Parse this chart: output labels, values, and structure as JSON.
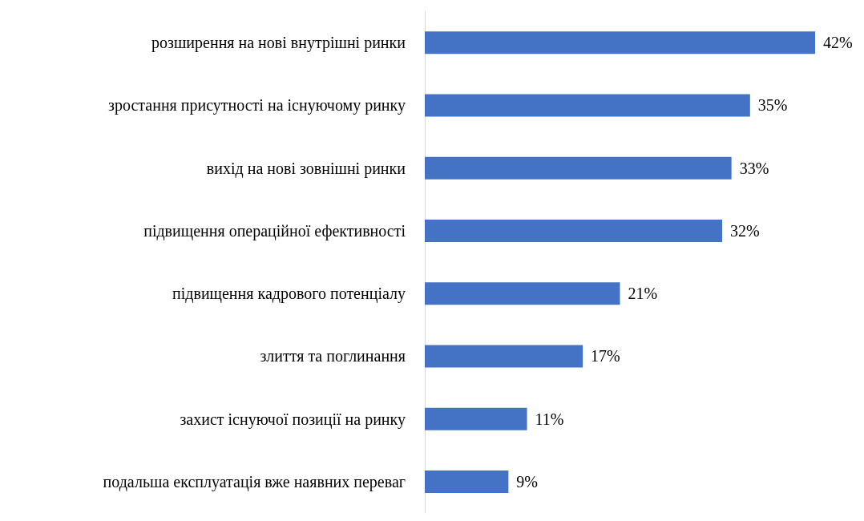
{
  "chart_data": {
    "type": "bar",
    "orientation": "horizontal",
    "categories": [
      "розширення на нові внутрішні ринки",
      "зростання присутності на існуючому ринку",
      "вихід на нові зовнішні ринки",
      "підвищення операційної ефективності",
      "підвищення кадрового потенціалу",
      "злиття та поглинання",
      "захист існуючої позиції на ринку",
      "подальша експлуатація вже наявних переваг"
    ],
    "values": [
      42,
      35,
      33,
      32,
      21,
      17,
      11,
      9
    ],
    "value_labels": [
      "42%",
      "35%",
      "33%",
      "32%",
      "21%",
      "17%",
      "11%",
      "9%"
    ],
    "color": "#4472c4"
  }
}
